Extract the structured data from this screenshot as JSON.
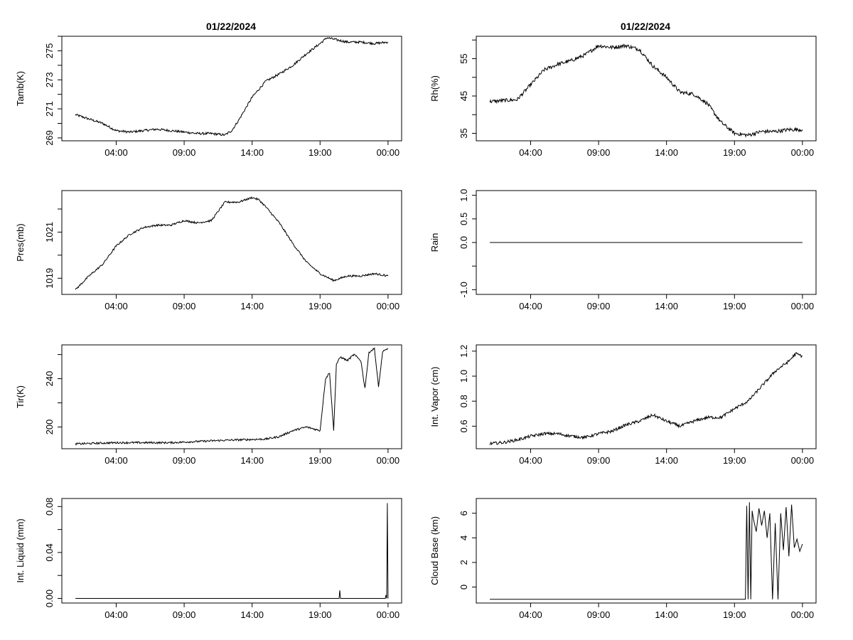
{
  "titles": [
    "01/22/2024",
    "01/22/2024"
  ],
  "chart_data": [
    {
      "type": "line",
      "name": "Tamb",
      "ylabel": "Tamb(K)",
      "xticks": [
        4,
        9,
        14,
        19,
        24
      ],
      "xtick_labels": [
        "04:00",
        "09:00",
        "14:00",
        "19:00",
        "00:00"
      ],
      "xlim": [
        0,
        25
      ],
      "ylim": [
        268.8,
        276.0
      ],
      "yticks": [
        269,
        270,
        271,
        272,
        273,
        274,
        275,
        276
      ],
      "ytick_labels": [
        "269",
        "",
        "271",
        "",
        "273",
        "",
        "275",
        ""
      ],
      "x": [
        1,
        2,
        3,
        4,
        5,
        6,
        7,
        8,
        9,
        10,
        11,
        12,
        12.5,
        13,
        14,
        15,
        16,
        17,
        18,
        19,
        19.5,
        20,
        21,
        22,
        23,
        24
      ],
      "y": [
        270.6,
        270.3,
        270.0,
        269.5,
        269.4,
        269.5,
        269.6,
        269.5,
        269.4,
        269.3,
        269.3,
        269.2,
        269.5,
        270.2,
        271.8,
        272.9,
        273.4,
        274.0,
        274.8,
        275.5,
        275.9,
        275.8,
        275.6,
        275.6,
        275.5,
        275.6
      ]
    },
    {
      "type": "line",
      "name": "Rh",
      "ylabel": "Rh(%)",
      "xticks": [
        4,
        9,
        14,
        19,
        24
      ],
      "xtick_labels": [
        "04:00",
        "09:00",
        "14:00",
        "19:00",
        "00:00"
      ],
      "xlim": [
        0,
        25
      ],
      "ylim": [
        33,
        61
      ],
      "yticks": [
        35,
        40,
        45,
        50,
        55,
        60
      ],
      "ytick_labels": [
        "35",
        "",
        "45",
        "",
        "55",
        ""
      ],
      "x": [
        1,
        2,
        3,
        4,
        5,
        6,
        7,
        8,
        9,
        10,
        11,
        12,
        13,
        14,
        15,
        16,
        17,
        18,
        19,
        20,
        21,
        22,
        23,
        24
      ],
      "y": [
        43.5,
        43.8,
        44,
        48,
        52,
        53.5,
        54.5,
        56,
        58.5,
        58,
        58.5,
        57.5,
        53,
        50,
        46,
        45.5,
        43,
        38,
        35,
        34.5,
        35.5,
        35.5,
        36,
        36
      ]
    },
    {
      "type": "line",
      "name": "Pres",
      "ylabel": "Pres(mb)",
      "xticks": [
        4,
        9,
        14,
        19,
        24
      ],
      "xtick_labels": [
        "04:00",
        "09:00",
        "14:00",
        "19:00",
        "00:00"
      ],
      "xlim": [
        0,
        25
      ],
      "ylim": [
        1018.3,
        1022.8
      ],
      "yticks": [
        1019,
        1020,
        1021,
        1022
      ],
      "ytick_labels": [
        "1019",
        "",
        "1021",
        ""
      ],
      "x": [
        1,
        2,
        3,
        4,
        5,
        6,
        7,
        8,
        9,
        10,
        11,
        12,
        13,
        14,
        14.5,
        15,
        16,
        17,
        18,
        19,
        20,
        21,
        22,
        23,
        24
      ],
      "y": [
        1018.5,
        1019.1,
        1019.6,
        1020.4,
        1020.9,
        1021.2,
        1021.3,
        1021.3,
        1021.5,
        1021.4,
        1021.5,
        1022.3,
        1022.3,
        1022.5,
        1022.4,
        1022.1,
        1021.4,
        1020.5,
        1019.7,
        1019.2,
        1018.9,
        1019.1,
        1019.1,
        1019.2,
        1019.1
      ]
    },
    {
      "type": "line",
      "name": "Rain",
      "ylabel": "Rain",
      "xticks": [
        4,
        9,
        14,
        19,
        24
      ],
      "xtick_labels": [
        "04:00",
        "09:00",
        "14:00",
        "19:00",
        "00:00"
      ],
      "xlim": [
        0,
        25
      ],
      "ylim": [
        -1.1,
        1.1
      ],
      "yticks": [
        -1.0,
        -0.5,
        0.0,
        0.5,
        1.0
      ],
      "ytick_labels": [
        "-1.0",
        "",
        "0.0",
        "0.5",
        "1.0"
      ],
      "x": [
        1,
        24
      ],
      "y": [
        0,
        0
      ]
    },
    {
      "type": "line",
      "name": "Tir",
      "ylabel": "Tir(K)",
      "xticks": [
        4,
        9,
        14,
        19,
        24
      ],
      "xtick_labels": [
        "04:00",
        "09:00",
        "14:00",
        "19:00",
        "00:00"
      ],
      "xlim": [
        0,
        25
      ],
      "ylim": [
        182,
        268
      ],
      "yticks": [
        200,
        220,
        240,
        260
      ],
      "ytick_labels": [
        "200",
        "",
        "240",
        ""
      ],
      "x": [
        1,
        4,
        8,
        12,
        15,
        16,
        17,
        18,
        19,
        19.4,
        19.7,
        20.0,
        20.2,
        20.5,
        21,
        21.5,
        22,
        22.3,
        22.6,
        23,
        23.3,
        23.6,
        24
      ],
      "y": [
        186,
        187,
        187,
        189,
        190,
        192,
        197,
        200,
        197,
        240,
        245,
        197,
        252,
        258,
        255,
        260,
        255,
        232,
        262,
        265,
        233,
        262,
        265
      ]
    },
    {
      "type": "line",
      "name": "Int. Vapor",
      "ylabel": "Int. Vapor (cm)",
      "xticks": [
        4,
        9,
        14,
        19,
        24
      ],
      "xtick_labels": [
        "04:00",
        "09:00",
        "14:00",
        "19:00",
        "00:00"
      ],
      "xlim": [
        0,
        25
      ],
      "ylim": [
        0.42,
        1.25
      ],
      "yticks": [
        0.6,
        0.8,
        1.0,
        1.2
      ],
      "ytick_labels": [
        "0.6",
        "0.8",
        "1.0",
        "1.2"
      ],
      "x": [
        1,
        2,
        3,
        4,
        5,
        6,
        7,
        8,
        9,
        10,
        11,
        12,
        13,
        14,
        15,
        16,
        17,
        18,
        19,
        20,
        21,
        22,
        23,
        23.5,
        24
      ],
      "y": [
        0.46,
        0.47,
        0.49,
        0.52,
        0.54,
        0.54,
        0.52,
        0.51,
        0.54,
        0.56,
        0.61,
        0.64,
        0.69,
        0.64,
        0.6,
        0.64,
        0.67,
        0.67,
        0.74,
        0.8,
        0.92,
        1.04,
        1.12,
        1.18,
        1.16
      ]
    },
    {
      "type": "line",
      "name": "Int. Liquid",
      "ylabel": "Int. Liquid (mm)",
      "xticks": [
        4,
        9,
        14,
        19,
        24
      ],
      "xtick_labels": [
        "04:00",
        "09:00",
        "14:00",
        "19:00",
        "00:00"
      ],
      "xlim": [
        0,
        25
      ],
      "ylim": [
        -0.004,
        0.087
      ],
      "yticks": [
        0.0,
        0.02,
        0.04,
        0.06,
        0.08
      ],
      "ytick_labels": [
        "0.00",
        "",
        "0.04",
        "",
        "0.08"
      ],
      "x": [
        1,
        20.4,
        20.45,
        20.5,
        23.8,
        23.85,
        23.9,
        23.95,
        24
      ],
      "y": [
        0,
        0,
        0.007,
        0,
        0,
        0.003,
        0,
        0.083,
        0
      ]
    },
    {
      "type": "line",
      "name": "Cloud Base",
      "ylabel": "Cloud Base (km)",
      "xticks": [
        4,
        9,
        14,
        19,
        24
      ],
      "xtick_labels": [
        "04:00",
        "09:00",
        "14:00",
        "19:00",
        "00:00"
      ],
      "xlim": [
        0,
        25
      ],
      "ylim": [
        -1.3,
        7.2
      ],
      "yticks": [
        0,
        2,
        4,
        6
      ],
      "ytick_labels": [
        "0",
        "2",
        "4",
        "6"
      ],
      "x": [
        1,
        19.8,
        19.9,
        20.0,
        20.1,
        20.2,
        20.3,
        20.4,
        20.6,
        20.8,
        21.0,
        21.2,
        21.4,
        21.6,
        21.8,
        22.0,
        22.2,
        22.4,
        22.6,
        22.8,
        23.0,
        23.2,
        23.4,
        23.6,
        23.8,
        24
      ],
      "y": [
        -1,
        -1,
        6.6,
        -1,
        6.9,
        -1,
        6.2,
        5.5,
        4.5,
        6.4,
        5.0,
        6.2,
        4.0,
        6.0,
        -1,
        5.2,
        -1,
        6.0,
        3.0,
        6.5,
        2.5,
        6.7,
        3.2,
        3.9,
        2.9,
        3.5
      ]
    }
  ]
}
